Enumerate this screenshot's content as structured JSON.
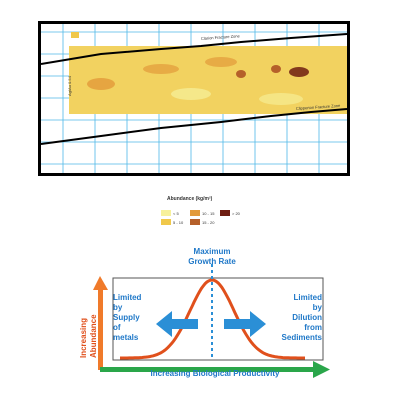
{
  "map": {
    "grid_color": "#4fb8e8",
    "labels": {
      "upper_zone": "Clarion Fracture Zone",
      "lower_zone": "Clipperton Fracture Zone",
      "left_axis": "Ag/Au 0.54"
    }
  },
  "legend": {
    "title": "Abundance (kg/m²)",
    "items": [
      {
        "label": "< 5",
        "color": "#f7f19c"
      },
      {
        "label": "5 - 10",
        "color": "#f0c84a"
      },
      {
        "label": "10 - 15",
        "color": "#e29a3a"
      },
      {
        "label": "15 - 20",
        "color": "#b5602a"
      },
      {
        "label": "> 20",
        "color": "#6e1e12"
      }
    ]
  },
  "diagram": {
    "peak_label": "Maximum\nGrowth Rate",
    "left_text": "Limited\nby\nSupply\nof\nmetals",
    "right_text": "Limited\nby\nDilution\nfrom\nSediments",
    "y_axis_label": "Increasing\nAbundance",
    "x_axis_label": "Increasing Biological Productivity",
    "colors": {
      "curve": "#e0501c",
      "arrow_blue": "#2b8fd6",
      "dashed": "#2b8fd6",
      "axis_up": "#f07a2a",
      "axis_right": "#2aa64a",
      "text_blue": "#1f78c8"
    }
  }
}
